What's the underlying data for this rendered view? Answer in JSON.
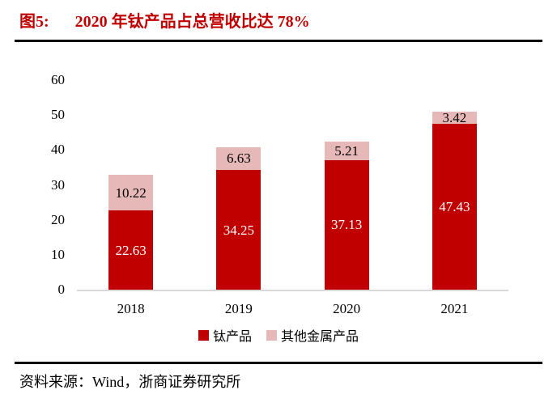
{
  "title": {
    "label": "图5:",
    "text": "2020 年钛产品占总营收比达 78%"
  },
  "source": "资料来源：Wind，浙商证券研究所",
  "colors": {
    "title_red": "#C00000",
    "bar_primary": "#C00000",
    "bar_secondary": "#E6B8B7",
    "axis_line": "#D9D9D9",
    "divider": "#000000",
    "text": "#000000"
  },
  "chart_data": {
    "type": "bar",
    "stacked": true,
    "title": "2020 年钛产品占总营收比达 78%",
    "categories": [
      "2018",
      "2019",
      "2020",
      "2021"
    ],
    "series": [
      {
        "name": "钛产品",
        "color": "#C00000",
        "label_color": "#FFFFFF",
        "values": [
          22.63,
          34.25,
          37.13,
          47.43
        ]
      },
      {
        "name": "其他金属产品",
        "color": "#E6B8B7",
        "label_color": "#000000",
        "values": [
          10.22,
          6.63,
          5.21,
          3.42
        ]
      }
    ],
    "y_ticks": [
      0,
      10,
      20,
      30,
      40,
      50,
      60
    ],
    "ylim": [
      0,
      60
    ],
    "xlabel": "",
    "ylabel": "",
    "grid": false,
    "legend_position": "bottom"
  }
}
